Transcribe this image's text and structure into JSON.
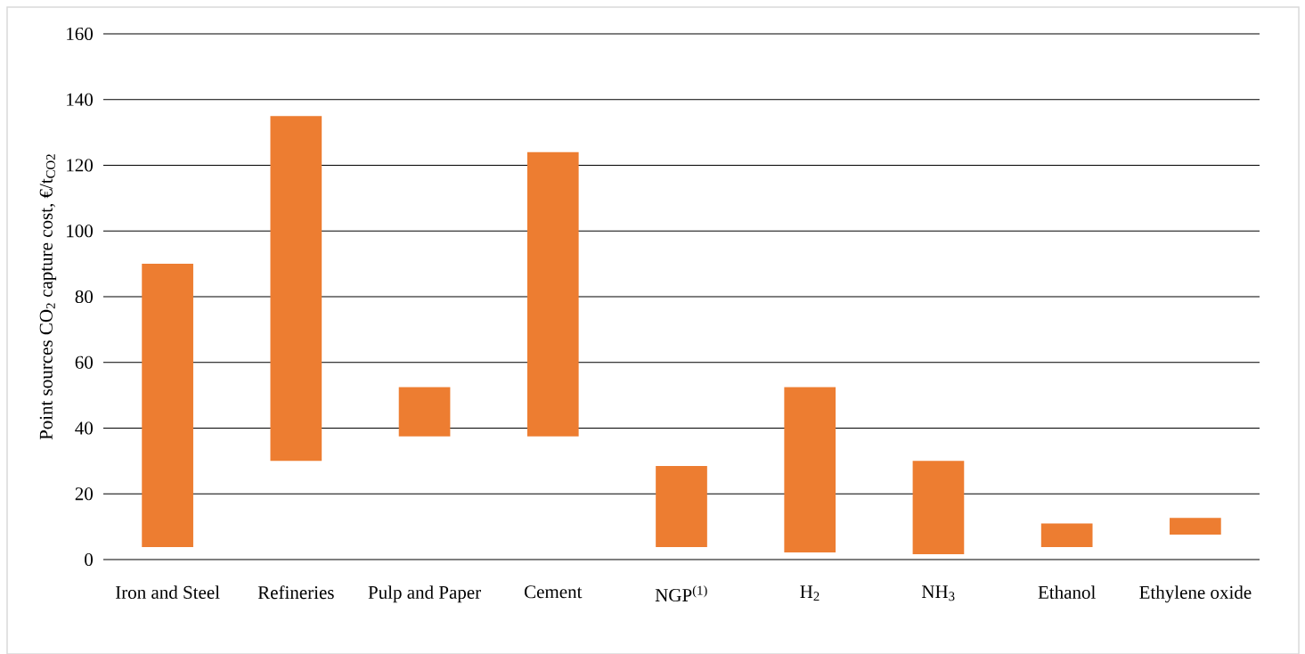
{
  "chart_data": {
    "type": "bar",
    "ylabel": "Point sources CO$_{2}$ capture cost,  €/t$_{CO2}$",
    "categories": [
      "Iron and Steel",
      "Refineries",
      "Pulp and Paper",
      "Cement",
      "NGP$^{(1)}$",
      "H$_{2}$",
      "NH$_{3}$",
      "Ethanol",
      "Ethylene oxide"
    ],
    "base": [
      3.8,
      30,
      37.5,
      37.5,
      3.8,
      2.2,
      1.6,
      3.8,
      7.6
    ],
    "values": [
      86.2,
      105,
      15,
      86.5,
      24.7,
      50.3,
      28.4,
      7.2,
      5.1
    ],
    "color": "#ed7d31",
    "ylim": [
      0,
      160
    ],
    "yticks": [
      0,
      20,
      40,
      60,
      80,
      100,
      120,
      140,
      160
    ],
    "grid": "y"
  }
}
